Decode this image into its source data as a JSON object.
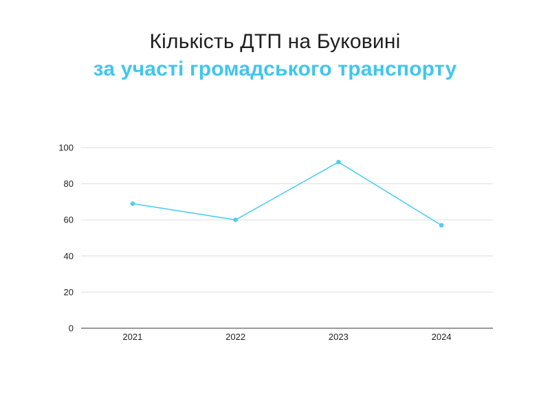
{
  "title": "Кількість ДТП на Буковині",
  "subtitle": "за участі громадського транспорту",
  "colors": {
    "line": "#4fcdf2",
    "subtitle": "#3fc6f0",
    "grid": "#dddddd"
  },
  "chart_data": {
    "type": "line",
    "title": "Кількість ДТП на Буковині",
    "subtitle": "за участі громадського транспорту",
    "categories": [
      "2021",
      "2022",
      "2023",
      "2024"
    ],
    "series": [
      {
        "values": [
          69,
          60,
          92,
          57
        ]
      }
    ],
    "ylim": [
      0,
      100
    ],
    "yticks": [
      0,
      20,
      40,
      60,
      80,
      100
    ],
    "grid": true,
    "legend": "none"
  }
}
